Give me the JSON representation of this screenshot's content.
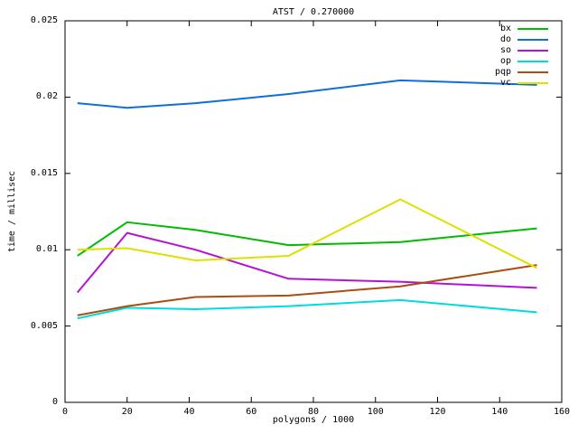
{
  "chart_data": {
    "type": "line",
    "title": "ATST / 0.270000",
    "xlabel": "polygons / 1000",
    "ylabel": "time / millisec",
    "xlim": [
      0,
      160
    ],
    "ylim": [
      0,
      0.025
    ],
    "xticks": [
      0,
      20,
      40,
      60,
      80,
      100,
      120,
      140,
      160
    ],
    "xtick_labels": [
      "0",
      "20",
      "40",
      "60",
      "80",
      "100",
      "120",
      "140",
      "160"
    ],
    "yticks": [
      0,
      0.005,
      0.01,
      0.015,
      0.02,
      0.025
    ],
    "ytick_labels": [
      "0",
      "0.005",
      "0.01",
      "0.015",
      "0.02",
      "0.025"
    ],
    "grid": false,
    "legend_position": "top-right-inside",
    "background_color": "#ffffff",
    "axis_color": "#000000",
    "x": [
      4,
      20,
      42,
      72,
      108,
      152
    ],
    "series": [
      {
        "name": "bx",
        "color": "#00bb00",
        "values": [
          0.0096,
          0.0118,
          0.0113,
          0.0103,
          0.0105,
          0.0114
        ]
      },
      {
        "name": "do",
        "color": "#0d6fdc",
        "values": [
          0.0196,
          0.0193,
          0.0196,
          0.0202,
          0.0211,
          0.0208
        ]
      },
      {
        "name": "so",
        "color": "#b412d8",
        "values": [
          0.0072,
          0.0111,
          0.01,
          0.0081,
          0.0079,
          0.0075
        ]
      },
      {
        "name": "op",
        "color": "#00dcdc",
        "values": [
          0.0055,
          0.0062,
          0.0061,
          0.0063,
          0.0067,
          0.0059
        ]
      },
      {
        "name": "pqp",
        "color": "#ab4d11",
        "values": [
          0.0057,
          0.0063,
          0.0069,
          0.007,
          0.0076,
          0.009
        ]
      },
      {
        "name": "vc",
        "color": "#dfdf00",
        "values": [
          0.01,
          0.0101,
          0.0093,
          0.0096,
          0.0133,
          0.0088
        ]
      }
    ]
  }
}
